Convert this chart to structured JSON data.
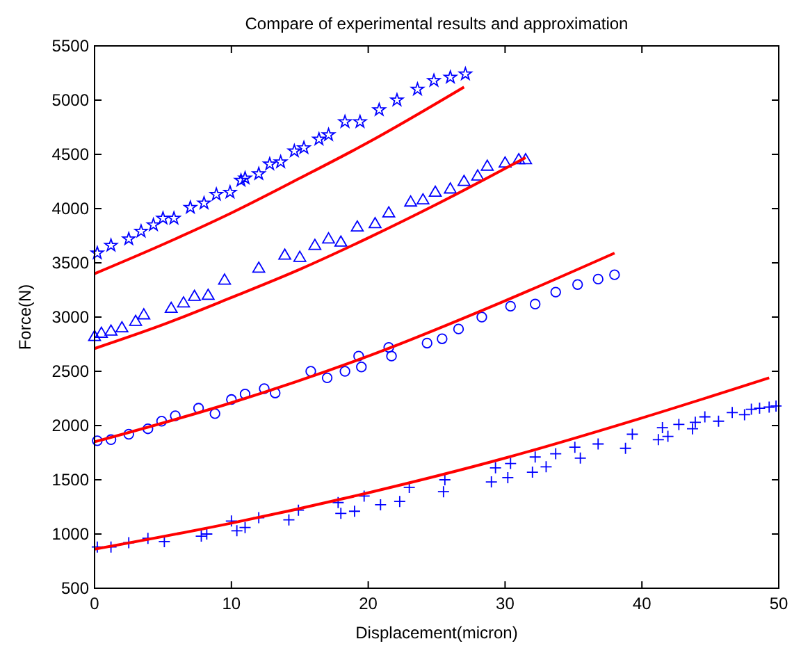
{
  "chart_data": {
    "type": "scatter",
    "title": "Compare of experimental results and approximation",
    "xlabel": "Displacement(micron)",
    "ylabel": "Force(N)",
    "xlim": [
      0,
      50
    ],
    "ylim": [
      500,
      5500
    ],
    "xticks": [
      0,
      10,
      20,
      30,
      40,
      50
    ],
    "yticks": [
      500,
      1000,
      1500,
      2000,
      2500,
      3000,
      3500,
      4000,
      4500,
      5000,
      5500
    ],
    "grid": false,
    "series": [
      {
        "marker": "star",
        "color": "#0000ff",
        "x": [
          0.2,
          1.2,
          2.5,
          3.4,
          4.3,
          5.0,
          5.8,
          7.0,
          8.0,
          8.9,
          9.9,
          10.7,
          11.0,
          12.0,
          12.8,
          13.6,
          14.6,
          15.3,
          16.4,
          17.1,
          18.3,
          19.4,
          20.8,
          22.1,
          23.6,
          24.8,
          26.0,
          27.1
        ],
        "values": [
          3590,
          3660,
          3720,
          3790,
          3850,
          3910,
          3910,
          4010,
          4050,
          4130,
          4150,
          4260,
          4280,
          4320,
          4410,
          4430,
          4530,
          4560,
          4640,
          4680,
          4800,
          4800,
          4910,
          5000,
          5100,
          5180,
          5210,
          5240
        ]
      },
      {
        "marker": "triangle",
        "color": "#0000ff",
        "x": [
          0,
          0.5,
          1.2,
          2,
          3,
          3.6,
          5.6,
          6.5,
          7.3,
          8.3,
          9.5,
          12,
          13.9,
          15,
          16.1,
          17.1,
          18,
          19.2,
          20.5,
          21.5,
          23.1,
          24,
          24.9,
          26,
          27,
          28,
          28.7,
          30,
          31,
          31.5
        ],
        "values": [
          2820,
          2850,
          2870,
          2900,
          2960,
          3020,
          3080,
          3130,
          3190,
          3200,
          3340,
          3450,
          3570,
          3550,
          3660,
          3720,
          3690,
          3830,
          3860,
          3960,
          4060,
          4080,
          4150,
          4180,
          4250,
          4300,
          4390,
          4420,
          4450,
          4450
        ]
      },
      {
        "marker": "circle",
        "color": "#0000ff",
        "x": [
          0.2,
          1.2,
          2.5,
          3.9,
          4.9,
          5.9,
          7.6,
          8.8,
          10.0,
          11.0,
          12.4,
          13.2,
          15.8,
          17.0,
          18.3,
          19.3,
          19.5,
          21.5,
          21.7,
          24.3,
          25.4,
          26.6,
          28.3,
          30.4,
          32.2,
          33.7,
          35.3,
          36.8,
          38.0
        ],
        "values": [
          1860,
          1870,
          1920,
          1970,
          2040,
          2090,
          2160,
          2110,
          2240,
          2290,
          2340,
          2300,
          2500,
          2440,
          2500,
          2640,
          2540,
          2720,
          2640,
          2760,
          2800,
          2890,
          3000,
          3100,
          3120,
          3230,
          3300,
          3350,
          3390
        ]
      },
      {
        "marker": "cross",
        "color": "#0000ff",
        "x": [
          0.2,
          1.2,
          2.5,
          3.9,
          5.1,
          7.8,
          8.2,
          10,
          10.4,
          11,
          12,
          14.2,
          14.9,
          17.8,
          18,
          19,
          19.7,
          20.9,
          22.3,
          23,
          25.5,
          25.6,
          29.0,
          29.3,
          30.2,
          30.4,
          32.0,
          32.2,
          33.0,
          33.7,
          35.1,
          35.5,
          36.8,
          38.8,
          39.3,
          41.2,
          41.5,
          41.9,
          42.7,
          43.7,
          43.9,
          44.6,
          45.6,
          46.6,
          47.5,
          48.0,
          48.6,
          49.3,
          49.8
        ],
        "values": [
          880,
          880,
          920,
          960,
          930,
          980,
          1000,
          1120,
          1030,
          1060,
          1150,
          1130,
          1220,
          1290,
          1190,
          1210,
          1350,
          1270,
          1300,
          1430,
          1390,
          1500,
          1480,
          1610,
          1520,
          1650,
          1570,
          1710,
          1620,
          1740,
          1800,
          1700,
          1830,
          1790,
          1920,
          1870,
          1980,
          1900,
          2010,
          1970,
          2030,
          2080,
          2040,
          2120,
          2100,
          2150,
          2160,
          2170,
          2180
        ]
      },
      {
        "type": "line",
        "marker": "none",
        "color": "#ff0000",
        "x": [
          0,
          5,
          10,
          15,
          20,
          27
        ],
        "values": [
          3400,
          3670,
          3960,
          4280,
          4610,
          5120
        ]
      },
      {
        "type": "line",
        "marker": "none",
        "color": "#ff0000",
        "x": [
          0,
          5,
          10,
          15,
          20,
          25,
          31.5
        ],
        "values": [
          2710,
          2930,
          3180,
          3440,
          3730,
          4040,
          4470
        ]
      },
      {
        "type": "line",
        "marker": "none",
        "color": "#ff0000",
        "x": [
          0,
          10,
          20,
          30,
          38
        ],
        "values": [
          1850,
          2210,
          2640,
          3150,
          3590
        ]
      },
      {
        "type": "line",
        "marker": "none",
        "color": "#ff0000",
        "x": [
          0,
          10,
          20,
          30,
          40,
          49.3
        ],
        "values": [
          860,
          1100,
          1380,
          1700,
          2070,
          2440
        ]
      }
    ]
  }
}
